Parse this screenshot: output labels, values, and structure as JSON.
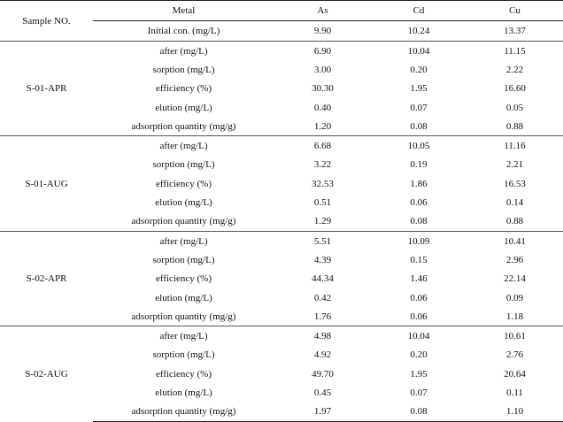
{
  "header": {
    "sample_label": "Sample NO.",
    "metal_label": "Metal",
    "metals": [
      "As",
      "Cd",
      "Cu"
    ],
    "initial_label": "Initial con. (mg/L)",
    "initial_values": [
      "9.90",
      "10.24",
      "13.37"
    ]
  },
  "groups": [
    {
      "sample": "S-01-APR",
      "rows": [
        {
          "label": "after (mg/L)",
          "values": [
            "6.90",
            "10.04",
            "11.15"
          ]
        },
        {
          "label": "sorption (mg/L)",
          "values": [
            "3.00",
            "0.20",
            "2.22"
          ]
        },
        {
          "label": "efficiency (%)",
          "values": [
            "30.30",
            "1.95",
            "16.60"
          ]
        },
        {
          "label": "elution (mg/L)",
          "values": [
            "0.40",
            "0.07",
            "0.05"
          ]
        },
        {
          "label": "adsorption quantity (mg/g)",
          "values": [
            "1.20",
            "0.08",
            "0.88"
          ]
        }
      ]
    },
    {
      "sample": "S-01-AUG",
      "rows": [
        {
          "label": "after (mg/L)",
          "values": [
            "6.68",
            "10.05",
            "11.16"
          ]
        },
        {
          "label": "sorption (mg/L)",
          "values": [
            "3.22",
            "0.19",
            "2.21"
          ]
        },
        {
          "label": "efficiency (%)",
          "values": [
            "32.53",
            "1.86",
            "16.53"
          ]
        },
        {
          "label": "elution (mg/L)",
          "values": [
            "0.51",
            "0.06",
            "0.14"
          ]
        },
        {
          "label": "adsorption quantity (mg/g)",
          "values": [
            "1.29",
            "0.08",
            "0.88"
          ]
        }
      ]
    },
    {
      "sample": "S-02-APR",
      "rows": [
        {
          "label": "after (mg/L)",
          "values": [
            "5.51",
            "10.09",
            "10.41"
          ]
        },
        {
          "label": "sorption (mg/L)",
          "values": [
            "4.39",
            "0.15",
            "2.96"
          ]
        },
        {
          "label": "efficiency (%)",
          "values": [
            "44.34",
            "1.46",
            "22.14"
          ]
        },
        {
          "label": "elution (mg/L)",
          "values": [
            "0.42",
            "0.06",
            "0.09"
          ]
        },
        {
          "label": "adsorption quantity (mg/g)",
          "values": [
            "1.76",
            "0.06",
            "1.18"
          ]
        }
      ]
    },
    {
      "sample": "S-02-AUG",
      "rows": [
        {
          "label": "after (mg/L)",
          "values": [
            "4.98",
            "10.04",
            "10.61"
          ]
        },
        {
          "label": "sorption (mg/L)",
          "values": [
            "4.92",
            "0.20",
            "2.76"
          ]
        },
        {
          "label": "efficiency (%)",
          "values": [
            "49.70",
            "1.95",
            "20.64"
          ]
        },
        {
          "label": "elution (mg/L)",
          "values": [
            "0.45",
            "0.07",
            "0.11"
          ]
        },
        {
          "label": "adsorption quantity (mg/g)",
          "values": [
            "1.97",
            "0.08",
            "1.10"
          ]
        }
      ]
    }
  ]
}
